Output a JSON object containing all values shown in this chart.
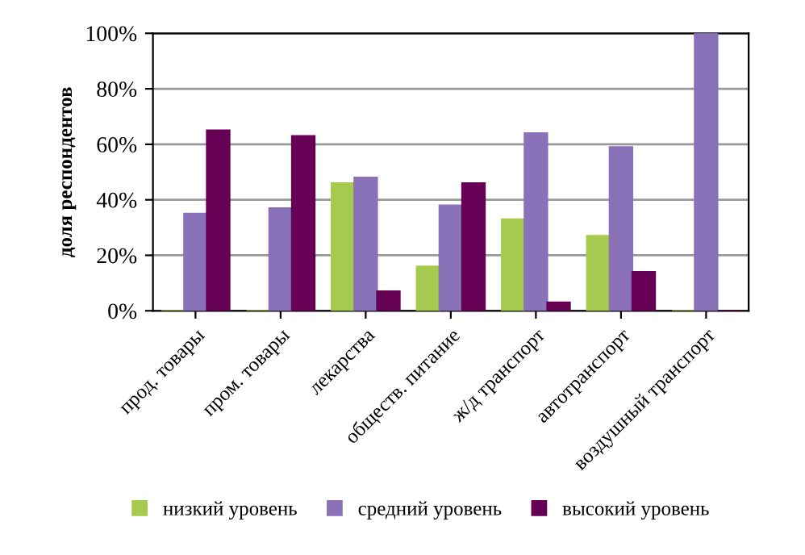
{
  "chart_data": {
    "type": "bar",
    "ylabel": "доля респондентов",
    "categories": [
      "прод. товары",
      "пром. товары",
      "лекарства",
      "обществ. питание",
      "ж/д транспорт",
      "автотранспорт",
      "воздушный транспорт"
    ],
    "series": [
      {
        "name": "низкий уровень",
        "color": "#a6c94f",
        "values": [
          0,
          0,
          46,
          16,
          33,
          27,
          0
        ]
      },
      {
        "name": "средний уровень",
        "color": "#8a72b8",
        "values": [
          35,
          37,
          48,
          38,
          64,
          59,
          100
        ]
      },
      {
        "name": "высокий уровень",
        "color": "#660055",
        "values": [
          65,
          63,
          7,
          46,
          3,
          14,
          0
        ]
      }
    ],
    "ylim": [
      0,
      100
    ],
    "yticks": [
      {
        "value": 0,
        "label": "0%"
      },
      {
        "value": 20,
        "label": "20%"
      },
      {
        "value": 40,
        "label": "40%"
      },
      {
        "value": 60,
        "label": "60%"
      },
      {
        "value": 80,
        "label": "80%"
      },
      {
        "value": 100,
        "label": "100%"
      }
    ],
    "grid": "y",
    "legend": "bottom"
  }
}
